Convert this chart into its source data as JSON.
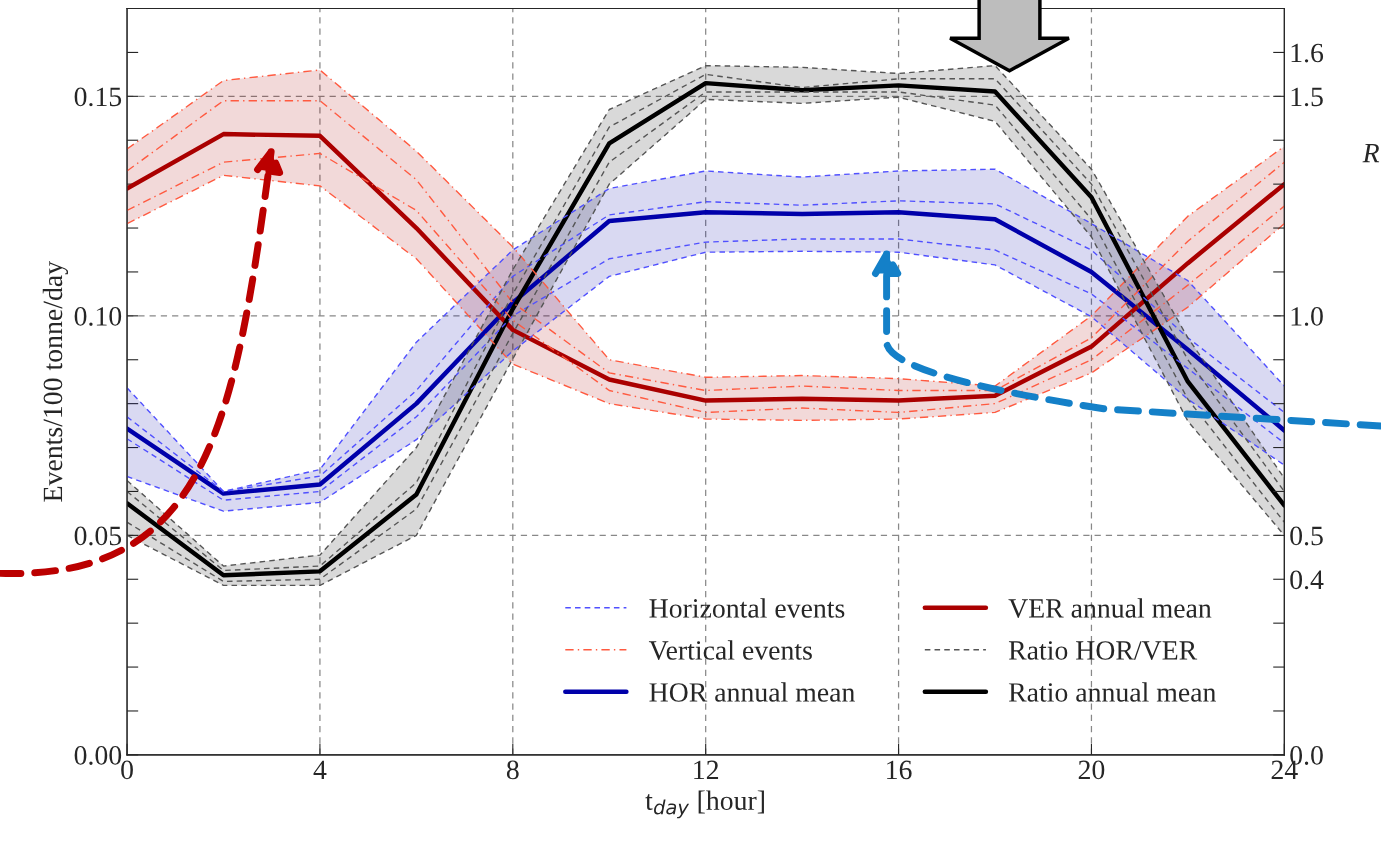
{
  "chart_data": {
    "type": "line",
    "xlabel": "t$_{day}$ [hour]",
    "ylabel": "Events/100 tonne/day",
    "y2label": "R",
    "x": [
      0,
      2,
      4,
      6,
      8,
      10,
      12,
      14,
      16,
      18,
      20,
      22,
      24
    ],
    "xlim": [
      0,
      24
    ],
    "xticks": [
      0,
      4,
      8,
      12,
      16,
      20,
      24
    ],
    "ylim": [
      0,
      0.17
    ],
    "yticks": [
      {
        "value": 0,
        "label": "0.00"
      },
      {
        "value": 0.01,
        "label": null
      },
      {
        "value": 0.02,
        "label": null
      },
      {
        "value": 0.03,
        "label": null
      },
      {
        "value": 0.04,
        "label": null
      },
      {
        "value": 0.05,
        "label": "0.05"
      },
      {
        "value": 0.06,
        "label": null
      },
      {
        "value": 0.07,
        "label": null
      },
      {
        "value": 0.08,
        "label": null
      },
      {
        "value": 0.09,
        "label": null
      },
      {
        "value": 0.1,
        "label": "0.10"
      },
      {
        "value": 0.11,
        "label": null
      },
      {
        "value": 0.12,
        "label": null
      },
      {
        "value": 0.13,
        "label": null
      },
      {
        "value": 0.14,
        "label": null
      },
      {
        "value": 0.15,
        "label": "0.15"
      },
      {
        "value": 0.16,
        "label": null
      }
    ],
    "y2lim": [
      0,
      1.7
    ],
    "y2ticks": [
      {
        "value": 0,
        "label": "0.0"
      },
      {
        "value": 0.1,
        "label": null
      },
      {
        "value": 0.2,
        "label": null
      },
      {
        "value": 0.3,
        "label": null
      },
      {
        "value": 0.4,
        "label": "0.4"
      },
      {
        "value": 0.5,
        "label": "0.5"
      },
      {
        "value": 0.6,
        "label": null
      },
      {
        "value": 0.7,
        "label": null
      },
      {
        "value": 0.8,
        "label": null
      },
      {
        "value": 0.9,
        "label": null
      },
      {
        "value": 1.0,
        "label": "1.0"
      },
      {
        "value": 1.1,
        "label": null
      },
      {
        "value": 1.2,
        "label": null
      },
      {
        "value": 1.3,
        "label": null
      },
      {
        "value": 1.4,
        "label": null
      },
      {
        "value": 1.5,
        "label": "1.5"
      },
      {
        "value": 1.6,
        "label": "1.6"
      }
    ],
    "grid": true,
    "legend": "bottom",
    "series": [
      {
        "name": "Horizontal events",
        "color": "#5050ff",
        "line_style": "dashed",
        "values": [
          0.0836,
          0.06,
          0.065,
          0.094,
          0.115,
          0.129,
          0.133,
          0.1316,
          0.133,
          0.1334,
          0.121,
          0.108,
          0.084
        ]
      },
      {
        "color": "#5050ff",
        "line_style": "dashed",
        "values": [
          0.0634,
          0.0555,
          0.0575,
          0.0718,
          0.092,
          0.109,
          0.1145,
          0.1147,
          0.1145,
          0.1116,
          0.0998,
          0.081,
          0.066
        ]
      },
      {
        "color": "#5050ff",
        "line_style": "dashed",
        "values": [
          0.077,
          0.06,
          0.0635,
          0.083,
          0.109,
          0.123,
          0.126,
          0.1252,
          0.1262,
          0.1255,
          0.115,
          0.095,
          0.078
        ]
      },
      {
        "color": "#5050ff",
        "line_style": "dashed",
        "values": [
          0.072,
          0.058,
          0.06,
          0.077,
          0.1,
          0.113,
          0.1168,
          0.1175,
          0.1175,
          0.115,
          0.105,
          0.088,
          0.071
        ]
      },
      {
        "name": "Vertical events",
        "color": "#ff5a40",
        "line_style": "dashdot",
        "values": [
          0.138,
          0.1536,
          0.156,
          0.1375,
          0.1157,
          0.09,
          0.086,
          0.0864,
          0.0857,
          0.084,
          0.1,
          0.1227,
          0.1386
        ]
      },
      {
        "color": "#ff5a40",
        "line_style": "dashdot",
        "values": [
          0.121,
          0.132,
          0.1296,
          0.113,
          0.089,
          0.08,
          0.0765,
          0.0762,
          0.0765,
          0.078,
          0.087,
          0.102,
          0.121
        ]
      },
      {
        "color": "#ff5a40",
        "line_style": "dashdot",
        "values": [
          0.133,
          0.149,
          0.149,
          0.131,
          0.103,
          0.087,
          0.083,
          0.084,
          0.083,
          0.083,
          0.095,
          0.117,
          0.135
        ]
      },
      {
        "color": "#ff5a40",
        "line_style": "dashdot",
        "values": [
          0.124,
          0.135,
          0.137,
          0.124,
          0.099,
          0.083,
          0.078,
          0.079,
          0.078,
          0.08,
          0.09,
          0.107,
          0.125
        ]
      },
      {
        "name": "HOR annual mean",
        "color": "#0000aa",
        "line_style": "solid",
        "values": [
          0.0743,
          0.0595,
          0.0616,
          0.08,
          0.103,
          0.1216,
          0.1236,
          0.1232,
          0.1236,
          0.122,
          0.11,
          0.0923,
          0.0739
        ],
        "lower": [
          0.0634,
          0.0555,
          0.0575,
          0.0718,
          0.092,
          0.109,
          0.1145,
          0.1147,
          0.1145,
          0.1116,
          0.0998,
          0.081,
          0.066
        ],
        "upper": [
          0.0836,
          0.06,
          0.065,
          0.094,
          0.115,
          0.129,
          0.133,
          0.1316,
          0.133,
          0.1334,
          0.121,
          0.108,
          0.084
        ]
      },
      {
        "name": "VER annual mean",
        "color": "#aa0000",
        "line_style": "solid",
        "values": [
          0.129,
          0.1414,
          0.141,
          0.12,
          0.0968,
          0.0855,
          0.0807,
          0.0811,
          0.0807,
          0.0818,
          0.093,
          0.112,
          0.13
        ],
        "lower": [
          0.121,
          0.132,
          0.1296,
          0.113,
          0.089,
          0.08,
          0.0765,
          0.0762,
          0.0765,
          0.078,
          0.087,
          0.102,
          0.121
        ],
        "upper": [
          0.138,
          0.1536,
          0.156,
          0.1375,
          0.1157,
          0.09,
          0.086,
          0.0864,
          0.0857,
          0.084,
          0.1,
          0.1227,
          0.1386
        ]
      },
      {
        "name": "Ratio HOR/VER",
        "color": "#555555",
        "line_style": "dashed",
        "axis": "y2",
        "values": [
          0.625,
          0.43,
          0.455,
          0.7,
          1.105,
          1.47,
          1.57,
          1.566,
          1.552,
          1.57,
          1.334,
          0.95,
          0.63
        ]
      },
      {
        "color": "#555555",
        "line_style": "dashed",
        "axis": "y2",
        "values": [
          0.5,
          0.386,
          0.386,
          0.5,
          0.902,
          1.3,
          1.493,
          1.484,
          1.498,
          1.443,
          1.18,
          0.76,
          0.5
        ]
      },
      {
        "color": "#555555",
        "line_style": "dashed",
        "axis": "y2",
        "values": [
          0.6,
          0.42,
          0.43,
          0.62,
          1.05,
          1.43,
          1.55,
          1.52,
          1.54,
          1.54,
          1.3,
          0.9,
          0.6
        ]
      },
      {
        "color": "#555555",
        "line_style": "dashed",
        "axis": "y2",
        "values": [
          0.53,
          0.395,
          0.4,
          0.56,
          0.96,
          1.35,
          1.51,
          1.51,
          1.51,
          1.48,
          1.22,
          0.81,
          0.53
        ]
      },
      {
        "name": "Ratio annual mean",
        "color": "#000000",
        "line_style": "solid",
        "axis": "y2",
        "values": [
          0.573,
          0.409,
          0.418,
          0.593,
          1.016,
          1.393,
          1.53,
          1.514,
          1.525,
          1.511,
          1.27,
          0.85,
          0.568
        ],
        "lower": [
          0.5,
          0.386,
          0.386,
          0.5,
          0.902,
          1.3,
          1.493,
          1.484,
          1.498,
          1.443,
          1.18,
          0.76,
          0.5
        ],
        "upper": [
          0.625,
          0.43,
          0.455,
          0.7,
          1.105,
          1.47,
          1.57,
          1.566,
          1.552,
          1.57,
          1.334,
          0.95,
          0.63
        ]
      }
    ]
  }
}
